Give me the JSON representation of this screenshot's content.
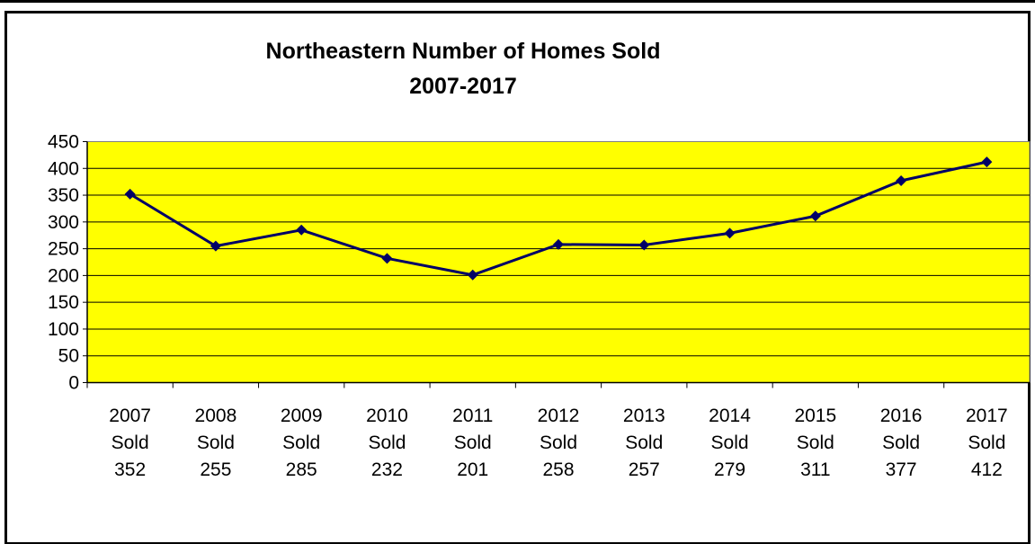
{
  "chart_data": {
    "type": "line",
    "title": "Northeastern Number of Homes Sold",
    "subtitle": "2007-2017",
    "xlabel": "",
    "ylabel": "",
    "ylim": [
      0,
      450
    ],
    "yticks": [
      0,
      50,
      100,
      150,
      200,
      250,
      300,
      350,
      400,
      450
    ],
    "grid": true,
    "legend": "none",
    "plot_background": "#ffff00",
    "line_color": "#000066",
    "categories": [
      [
        "2007",
        "Sold",
        "352"
      ],
      [
        "2008",
        "Sold",
        "255"
      ],
      [
        "2009",
        "Sold",
        "285"
      ],
      [
        "2010",
        "Sold",
        "232"
      ],
      [
        "2011",
        "Sold",
        "201"
      ],
      [
        "2012",
        "Sold",
        "258"
      ],
      [
        "2013",
        "Sold",
        "257"
      ],
      [
        "2014",
        "Sold",
        "279"
      ],
      [
        "2015",
        "Sold",
        "311"
      ],
      [
        "2016",
        "Sold",
        "377"
      ],
      [
        "2017",
        "Sold",
        "412"
      ]
    ],
    "values": [
      352,
      255,
      285,
      232,
      201,
      258,
      257,
      279,
      311,
      377,
      412
    ]
  }
}
